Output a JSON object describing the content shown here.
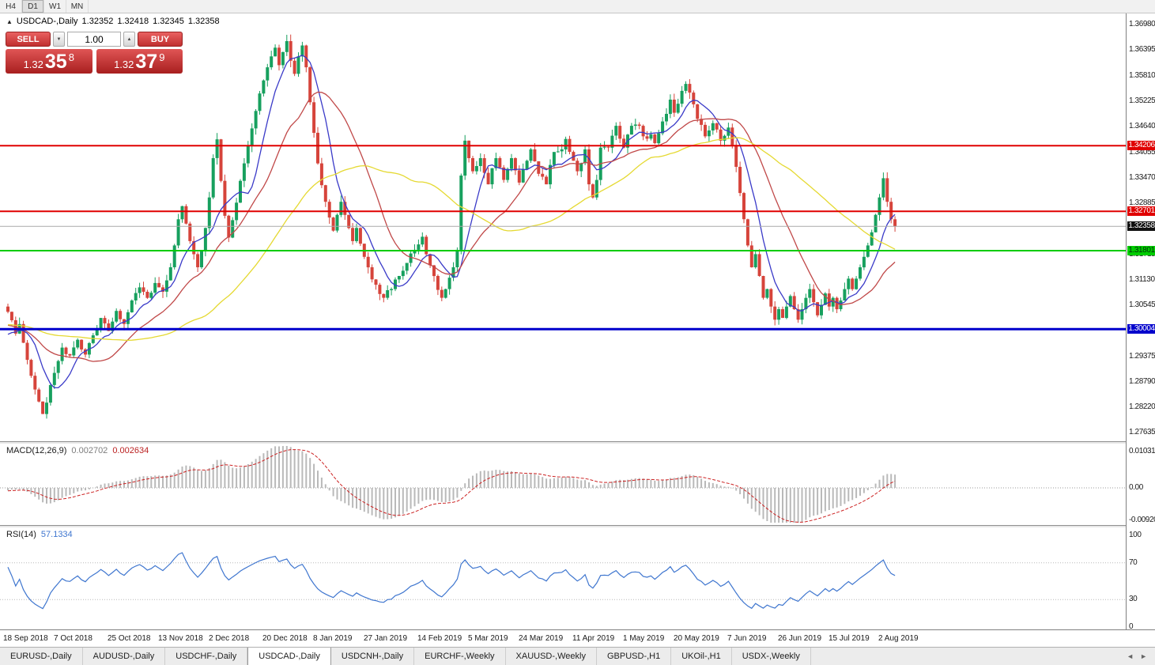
{
  "toolbar": {
    "timeframes": [
      {
        "label": "H4",
        "active": false
      },
      {
        "label": "D1",
        "active": true
      },
      {
        "label": "W1",
        "active": false
      },
      {
        "label": "MN",
        "active": false
      }
    ]
  },
  "chart_header": {
    "symbol": "USDCAD-,Daily",
    "open": "1.32352",
    "high": "1.32418",
    "low": "1.32345",
    "close": "1.32358"
  },
  "trade_panel": {
    "sell_label": "SELL",
    "buy_label": "BUY",
    "volume": "1.00",
    "sell_price": {
      "base": "1.32",
      "pips": "35",
      "point": "8"
    },
    "buy_price": {
      "base": "1.32",
      "pips": "37",
      "point": "9"
    }
  },
  "icons": {
    "up_triangle": "▲",
    "spin_up": "▲",
    "spin_down": "▼",
    "tab_left": "◄",
    "tab_right": "►"
  },
  "price_axis": {
    "ticks": [
      "1.36980",
      "1.36395",
      "1.35810",
      "1.35225",
      "1.34640",
      "1.34055",
      "1.33470",
      "1.32885",
      "1.32300",
      "1.31715",
      "1.31130",
      "1.30545",
      "1.29960",
      "1.29375",
      "1.28790",
      "1.28220",
      "1.27635"
    ],
    "badges": [
      {
        "text": "1.34206",
        "price": 1.34206,
        "bg": "#e00000",
        "fg": "#ffffff"
      },
      {
        "text": "1.32701",
        "price": 1.32701,
        "bg": "#e00000",
        "fg": "#ffffff"
      },
      {
        "text": "1.32358",
        "price": 1.32358,
        "bg": "#111111",
        "fg": "#ffffff"
      },
      {
        "text": "1.31801",
        "price": 1.31801,
        "bg": "#00cc00",
        "fg": "#00320a"
      },
      {
        "text": "1.30004",
        "price": 1.30004,
        "bg": "#0000cc",
        "fg": "#ffffff"
      }
    ]
  },
  "macd_panel": {
    "label": "MACD(12,26,9)",
    "main_value": "0.002702",
    "signal_value": "0.002634",
    "axis": [
      {
        "text": "0.010311",
        "value": 0.010311
      },
      {
        "text": "0.00",
        "value": 0
      },
      {
        "text": "-0.00920",
        "value": -0.0092
      }
    ]
  },
  "rsi_panel": {
    "label": "RSI(14)",
    "value": "57.1334",
    "axis": [
      {
        "text": "100",
        "value": 100
      },
      {
        "text": "70",
        "value": 70
      },
      {
        "text": "30",
        "value": 30
      },
      {
        "text": "0",
        "value": 0
      }
    ],
    "levels": [
      70,
      30
    ]
  },
  "tabs": [
    {
      "label": "EURUSD-,Daily",
      "active": false
    },
    {
      "label": "AUDUSD-,Daily",
      "active": false
    },
    {
      "label": "USDCHF-,Daily",
      "active": false
    },
    {
      "label": "USDCAD-,Daily",
      "active": true
    },
    {
      "label": "USDCNH-,Daily",
      "active": false
    },
    {
      "label": "EURCHF-,Weekly",
      "active": false
    },
    {
      "label": "XAUUSD-,Weekly",
      "active": false
    },
    {
      "label": "GBPUSD-,H1",
      "active": false
    },
    {
      "label": "UKOil-,H1",
      "active": false
    },
    {
      "label": "USDX-,Weekly",
      "active": false
    }
  ],
  "chart_data": {
    "type": "candlestick",
    "symbol": "USDCAD",
    "timeframe": "Daily",
    "current_ohlc": {
      "open": 1.32352,
      "high": 1.32418,
      "low": 1.32345,
      "close": 1.32358
    },
    "y_axis_range": [
      1.27635,
      1.3698
    ],
    "last_day": 229,
    "colors": {
      "up": "#17a05e",
      "down": "#d6443b"
    },
    "moving_averages": [
      {
        "period": 8,
        "color": "#3a3ac8"
      },
      {
        "period": 21,
        "color": "#c04848"
      },
      {
        "period": 50,
        "color": "#e5d932"
      }
    ],
    "horizontal_lines": [
      {
        "price": 1.34206,
        "color": "#e00000",
        "width": 2
      },
      {
        "price": 1.32701,
        "color": "#e00000",
        "width": 2
      },
      {
        "price": 1.31801,
        "color": "#00cc00",
        "width": 2
      },
      {
        "price": 1.30004,
        "color": "#0000cc",
        "width": 3
      },
      {
        "price": 1.32358,
        "color": "#aaaaaa",
        "width": 1
      }
    ],
    "x_axis_dates": [
      {
        "label": "18 Sep 2018",
        "day": 0
      },
      {
        "label": "7 Oct 2018",
        "day": 13
      },
      {
        "label": "25 Oct 2018",
        "day": 27
      },
      {
        "label": "13 Nov 2018",
        "day": 40
      },
      {
        "label": "2 Dec 2018",
        "day": 53
      },
      {
        "label": "20 Dec 2018",
        "day": 67
      },
      {
        "label": "8 Jan 2019",
        "day": 80
      },
      {
        "label": "27 Jan 2019",
        "day": 93
      },
      {
        "label": "14 Feb 2019",
        "day": 107
      },
      {
        "label": "5 Mar 2019",
        "day": 120
      },
      {
        "label": "24 Mar 2019",
        "day": 133
      },
      {
        "label": "11 Apr 2019",
        "day": 147
      },
      {
        "label": "1 May 2019",
        "day": 160
      },
      {
        "label": "20 May 2019",
        "day": 173
      },
      {
        "label": "7 Jun 2019",
        "day": 187
      },
      {
        "label": "26 Jun 2019",
        "day": 200
      },
      {
        "label": "15 Jul 2019",
        "day": 213
      },
      {
        "label": "2 Aug 2019",
        "day": 226
      }
    ],
    "indicators": {
      "macd": {
        "params": [
          12,
          26,
          9
        ],
        "current": [
          0.002702,
          0.002634
        ],
        "axis_range": [
          -0.0092,
          0.010311
        ]
      },
      "rsi": {
        "period": 14,
        "current": 57.1334,
        "levels": [
          70,
          30
        ],
        "axis_range": [
          0,
          100
        ]
      }
    },
    "price_anchors": [
      [
        0,
        1.304
      ],
      [
        2,
        1.299
      ],
      [
        3,
        1.3012
      ],
      [
        5,
        1.293
      ],
      [
        7,
        1.2862
      ],
      [
        9,
        1.2806
      ],
      [
        10,
        1.2832
      ],
      [
        12,
        1.29
      ],
      [
        14,
        1.2958
      ],
      [
        16,
        1.294
      ],
      [
        18,
        1.2976
      ],
      [
        20,
        1.2942
      ],
      [
        22,
        1.2986
      ],
      [
        24,
        1.3026
      ],
      [
        26,
        1.2996
      ],
      [
        28,
        1.3042
      ],
      [
        30,
        1.3012
      ],
      [
        32,
        1.3066
      ],
      [
        34,
        1.3096
      ],
      [
        36,
        1.3072
      ],
      [
        38,
        1.3106
      ],
      [
        40,
        1.3086
      ],
      [
        42,
        1.3142
      ],
      [
        43,
        1.3192
      ],
      [
        44,
        1.3252
      ],
      [
        45,
        1.3282
      ],
      [
        46,
        1.3242
      ],
      [
        47,
        1.3202
      ],
      [
        48,
        1.3172
      ],
      [
        49,
        1.3142
      ],
      [
        50,
        1.318
      ],
      [
        51,
        1.3232
      ],
      [
        52,
        1.3302
      ],
      [
        53,
        1.3392
      ],
      [
        54,
        1.3435
      ],
      [
        55,
        1.334
      ],
      [
        56,
        1.326
      ],
      [
        57,
        1.321
      ],
      [
        58,
        1.325
      ],
      [
        59,
        1.329
      ],
      [
        60,
        1.334
      ],
      [
        61,
        1.338
      ],
      [
        62,
        1.342
      ],
      [
        63,
        1.346
      ],
      [
        64,
        1.35
      ],
      [
        65,
        1.354
      ],
      [
        66,
        1.357
      ],
      [
        67,
        1.36
      ],
      [
        68,
        1.3625
      ],
      [
        69,
        1.3645
      ],
      [
        70,
        1.3605
      ],
      [
        71,
        1.3635
      ],
      [
        72,
        1.366
      ],
      [
        73,
        1.3615
      ],
      [
        74,
        1.3585
      ],
      [
        75,
        1.3625
      ],
      [
        76,
        1.365
      ],
      [
        77,
        1.36
      ],
      [
        78,
        1.352
      ],
      [
        79,
        1.345
      ],
      [
        80,
        1.338
      ],
      [
        81,
        1.333
      ],
      [
        82,
        1.3292
      ],
      [
        83,
        1.3256
      ],
      [
        84,
        1.3226
      ],
      [
        85,
        1.3262
      ],
      [
        86,
        1.3292
      ],
      [
        87,
        1.3262
      ],
      [
        88,
        1.3232
      ],
      [
        89,
        1.3202
      ],
      [
        90,
        1.3232
      ],
      [
        91,
        1.3196
      ],
      [
        92,
        1.3166
      ],
      [
        93,
        1.3142
      ],
      [
        95,
        1.3102
      ],
      [
        97,
        1.3072
      ],
      [
        99,
        1.3092
      ],
      [
        101,
        1.3122
      ],
      [
        103,
        1.3152
      ],
      [
        105,
        1.3182
      ],
      [
        107,
        1.3212
      ],
      [
        108,
        1.3172
      ],
      [
        110,
        1.3122
      ],
      [
        112,
        1.3072
      ],
      [
        113,
        1.3092
      ],
      [
        115,
        1.3142
      ],
      [
        116,
        1.3182
      ],
      [
        117,
        1.3352
      ],
      [
        118,
        1.3432
      ],
      [
        119,
        1.3392
      ],
      [
        120,
        1.3362
      ],
      [
        122,
        1.3392
      ],
      [
        124,
        1.3332
      ],
      [
        126,
        1.3392
      ],
      [
        128,
        1.3342
      ],
      [
        130,
        1.3392
      ],
      [
        132,
        1.3336
      ],
      [
        134,
        1.3386
      ],
      [
        135,
        1.3412
      ],
      [
        137,
        1.3356
      ],
      [
        139,
        1.3332
      ],
      [
        141,
        1.3406
      ],
      [
        143,
        1.3412
      ],
      [
        144,
        1.3436
      ],
      [
        146,
        1.3386
      ],
      [
        147,
        1.3362
      ],
      [
        149,
        1.3412
      ],
      [
        150,
        1.3332
      ],
      [
        151,
        1.3302
      ],
      [
        152,
        1.3342
      ],
      [
        153,
        1.3416
      ],
      [
        155,
        1.3416
      ],
      [
        157,
        1.3466
      ],
      [
        159,
        1.3416
      ],
      [
        161,
        1.3466
      ],
      [
        163,
        1.3466
      ],
      [
        164,
        1.3442
      ],
      [
        166,
        1.3446
      ],
      [
        167,
        1.3426
      ],
      [
        169,
        1.3476
      ],
      [
        171,
        1.3526
      ],
      [
        172,
        1.3496
      ],
      [
        174,
        1.3546
      ],
      [
        175,
        1.3562
      ],
      [
        176,
        1.3542
      ],
      [
        178,
        1.3482
      ],
      [
        180,
        1.3442
      ],
      [
        182,
        1.3472
      ],
      [
        184,
        1.3432
      ],
      [
        186,
        1.3462
      ],
      [
        187,
        1.3422
      ],
      [
        188,
        1.3372
      ],
      [
        189,
        1.3312
      ],
      [
        190,
        1.3252
      ],
      [
        191,
        1.3192
      ],
      [
        192,
        1.3142
      ],
      [
        193,
        1.3172
      ],
      [
        194,
        1.3122
      ],
      [
        195,
        1.3072
      ],
      [
        196,
        1.3092
      ],
      [
        197,
        1.3052
      ],
      [
        198,
        1.3022
      ],
      [
        199,
        1.3046
      ],
      [
        200,
        1.3026
      ],
      [
        201,
        1.3052
      ],
      [
        202,
        1.3076
      ],
      [
        203,
        1.3046
      ],
      [
        204,
        1.3022
      ],
      [
        205,
        1.3046
      ],
      [
        206,
        1.3072
      ],
      [
        207,
        1.3092
      ],
      [
        208,
        1.3062
      ],
      [
        209,
        1.3032
      ],
      [
        210,
        1.3056
      ],
      [
        211,
        1.3082
      ],
      [
        212,
        1.3052
      ],
      [
        213,
        1.3072
      ],
      [
        214,
        1.3046
      ],
      [
        215,
        1.3066
      ],
      [
        216,
        1.3092
      ],
      [
        217,
        1.3116
      ],
      [
        218,
        1.3092
      ],
      [
        219,
        1.3116
      ],
      [
        220,
        1.3142
      ],
      [
        221,
        1.3166
      ],
      [
        222,
        1.3192
      ],
      [
        223,
        1.3222
      ],
      [
        224,
        1.3262
      ],
      [
        225,
        1.3302
      ],
      [
        226,
        1.3346
      ],
      [
        227,
        1.3292
      ],
      [
        228,
        1.3252
      ],
      [
        229,
        1.32358
      ]
    ]
  }
}
